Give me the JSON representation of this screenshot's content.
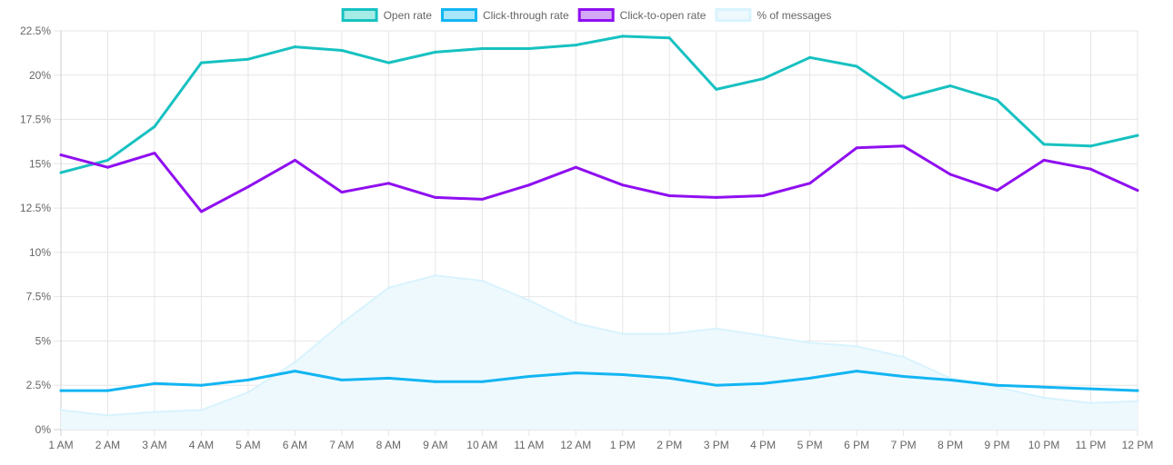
{
  "chart_data": {
    "type": "line",
    "categories": [
      "1 AM",
      "2 AM",
      "3 AM",
      "4 AM",
      "5 AM",
      "6 AM",
      "7 AM",
      "8 AM",
      "9 AM",
      "10 AM",
      "11 AM",
      "12 AM",
      "1 PM",
      "2 PM",
      "3 PM",
      "4 PM",
      "5 PM",
      "6 PM",
      "7 PM",
      "8 PM",
      "9 PM",
      "10 PM",
      "11 PM",
      "12 PM"
    ],
    "ylim": [
      0,
      22.5
    ],
    "yticks": [
      "0%",
      "2.5%",
      "5%",
      "7.5%",
      "10%",
      "12.5%",
      "15%",
      "17.5%",
      "20%",
      "22.5%"
    ],
    "grid": true,
    "legend_position": "top-center",
    "series": [
      {
        "name": "Open rate",
        "type": "line",
        "color": "#17c1c1",
        "fill": "#a6ece6",
        "values": [
          14.5,
          15.2,
          17.1,
          20.7,
          20.9,
          21.6,
          21.4,
          20.7,
          21.3,
          21.5,
          21.5,
          21.7,
          22.2,
          22.1,
          19.2,
          19.8,
          21.0,
          20.5,
          18.7,
          19.4,
          18.6,
          16.1,
          16.0,
          16.6
        ]
      },
      {
        "name": "Click-through rate",
        "type": "line",
        "color": "#12b5f2",
        "fill": "#a8e6fb",
        "values": [
          2.2,
          2.2,
          2.6,
          2.5,
          2.8,
          3.3,
          2.8,
          2.9,
          2.7,
          2.7,
          3.0,
          3.2,
          3.1,
          2.9,
          2.5,
          2.6,
          2.9,
          3.3,
          3.0,
          2.8,
          2.5,
          2.4,
          2.3,
          2.2
        ]
      },
      {
        "name": "Click-to-open rate",
        "type": "line",
        "color": "#8f0ff0",
        "fill": "#d2a8f7",
        "values": [
          15.5,
          14.8,
          15.6,
          12.3,
          13.7,
          15.2,
          13.4,
          13.9,
          13.1,
          13.0,
          13.8,
          14.8,
          13.8,
          13.2,
          13.1,
          13.2,
          13.9,
          15.9,
          16.0,
          14.4,
          13.5,
          15.2,
          14.7,
          13.5
        ]
      },
      {
        "name": "% of messages",
        "type": "area",
        "color": "#d9f3fd",
        "fill": "#eef9fe",
        "values": [
          1.1,
          0.8,
          1.0,
          1.1,
          2.1,
          3.8,
          6.0,
          8.0,
          8.7,
          8.4,
          7.3,
          6.0,
          5.4,
          5.4,
          5.7,
          5.3,
          4.9,
          4.7,
          4.1,
          2.9,
          2.4,
          1.8,
          1.5,
          1.6
        ]
      }
    ]
  }
}
